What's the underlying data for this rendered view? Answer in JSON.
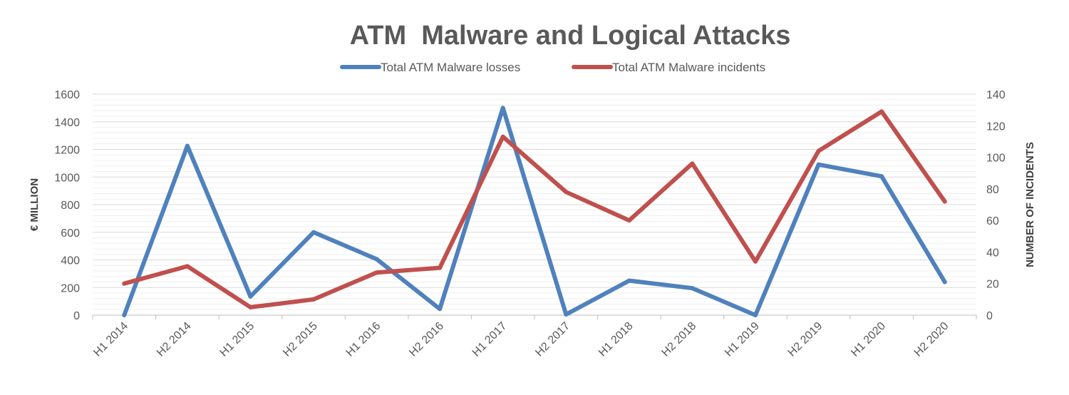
{
  "chart_data": {
    "type": "line",
    "title": "ATM  Malware and Logical Attacks",
    "categories": [
      "H1 2014",
      "H2 2014",
      "H1 2015",
      "H2 2015",
      "H1 2016",
      "H2 2016",
      "H1 2017",
      "H2 2017",
      "H1 2018",
      "H2 2018",
      "H1 2019",
      "H2 2019",
      "H1 2020",
      "H2 2020"
    ],
    "series": [
      {
        "name": "Total ATM Malware losses",
        "axis": "left",
        "color": "#4f81bd",
        "values": [
          0,
          1225,
          135,
          600,
          405,
          45,
          1500,
          5,
          250,
          195,
          0,
          1090,
          1005,
          240
        ]
      },
      {
        "name": "Total ATM Malware incidents",
        "axis": "right",
        "color": "#c0504d",
        "values": [
          20,
          31,
          5,
          10,
          27,
          30,
          113,
          78,
          60,
          96,
          34,
          104,
          129,
          72
        ]
      }
    ],
    "ylabel": "€ MILLION",
    "ylim": [
      0,
      1600
    ],
    "yticks": [
      0,
      200,
      400,
      600,
      800,
      1000,
      1200,
      1400,
      1600
    ],
    "y2label": "NUMBER OF INCIDENTS",
    "y2lim": [
      0,
      140
    ],
    "y2ticks": [
      0,
      20,
      40,
      60,
      80,
      100,
      120,
      140
    ],
    "grid": true,
    "legend_position": "top"
  }
}
